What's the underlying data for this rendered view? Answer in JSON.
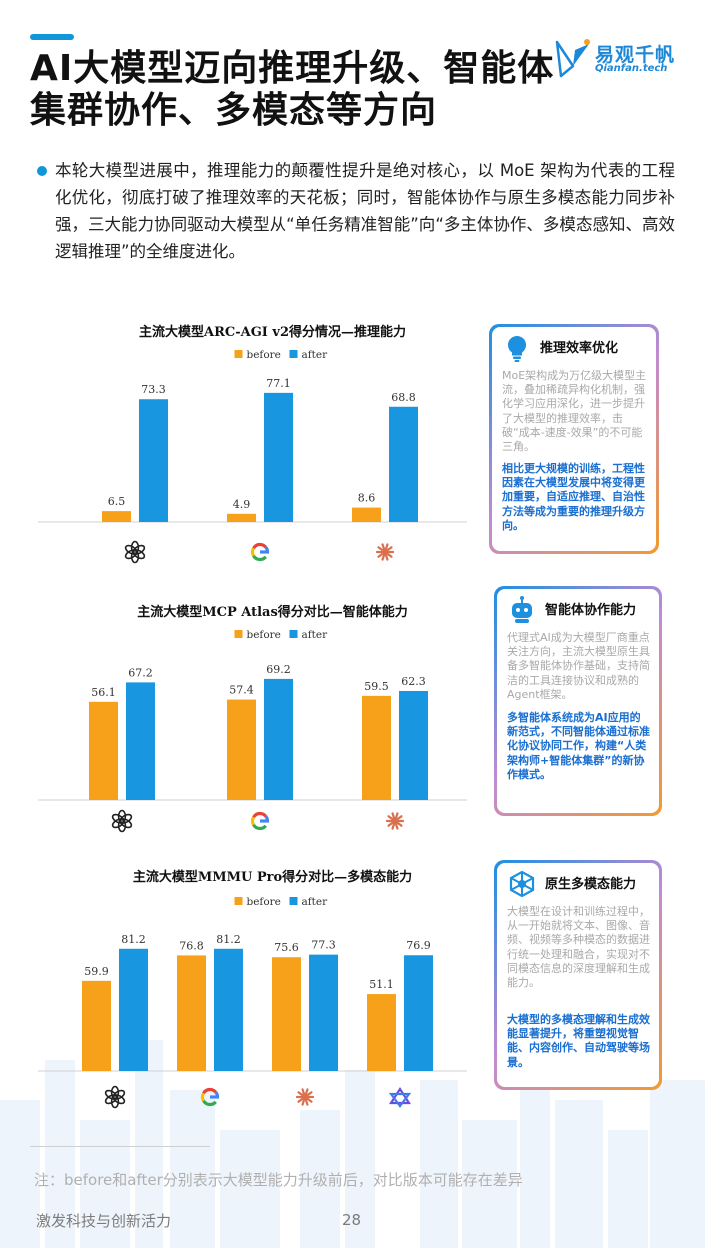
{
  "header": {
    "title": "AI大模型迈向推理升级、智能体集群协作、多模态等方向",
    "logo_cn": "易观千帆",
    "logo_en": "Qianfan.tech"
  },
  "intro": "本轮大模型进展中，推理能力的颠覆性提升是绝对核心，以 MoE 架构为代表的工程化优化，彻底打破了推理效率的天花板；同时，智能体协作与原生多模态能力同步补强，三大能力协同驱动大模型从“单任务精准智能”向“多主体协作、多模态感知、高效逻辑推理”的全维度进化。",
  "colors": {
    "before": "#f7a11a",
    "after": "#1896e0",
    "accent": "#1296db"
  },
  "chart_data": [
    {
      "type": "bar",
      "title": "主流大模型ARC-AGI v2得分情况—推理能力",
      "categories": [
        "openai-icon",
        "google-icon",
        "claude-icon"
      ],
      "series": [
        {
          "name": "before",
          "values": [
            6.5,
            4.9,
            8.6
          ]
        },
        {
          "name": "after",
          "values": [
            73.3,
            77.1,
            68.8
          ]
        }
      ],
      "ylim": [
        0,
        80
      ],
      "legend": "top-center",
      "grid": false
    },
    {
      "type": "bar",
      "title": "主流大模型MCP Atlas得分对比—智能体能力",
      "categories": [
        "openai-icon",
        "google-icon",
        "claude-icon"
      ],
      "series": [
        {
          "name": "before",
          "values": [
            56.1,
            57.4,
            59.5
          ]
        },
        {
          "name": "after",
          "values": [
            67.2,
            69.2,
            62.3
          ]
        }
      ],
      "ylim": [
        0,
        80
      ],
      "legend": "top-center",
      "grid": false
    },
    {
      "type": "bar",
      "title": "主流大模型MMMU Pro得分对比—多模态能力",
      "categories": [
        "openai-icon",
        "google-icon",
        "claude-icon",
        "grok-icon"
      ],
      "series": [
        {
          "name": "before",
          "values": [
            59.9,
            76.8,
            75.6,
            51.1
          ]
        },
        {
          "name": "after",
          "values": [
            81.2,
            81.2,
            77.3,
            76.9
          ]
        }
      ],
      "ylim": [
        0,
        95
      ],
      "legend": "top-center",
      "grid": false
    }
  ],
  "cards": [
    {
      "icon": "lightbulb-icon",
      "title": "推理效率优化",
      "gray": "MoE架构成为万亿级大模型主流，叠加稀疏异构化机制，强化学习应用深化，进一步提升了大模型的推理效率，击破“成本-速度-效果”的不可能三角。",
      "blue": "相比更大规模的训练，工程性因素在大模型发展中将变得更加重要，自适应推理、自治性方法等成为重要的推理升级方向。"
    },
    {
      "icon": "robot-icon",
      "title": "智能体协作能力",
      "gray": "代理式AI成为大模型厂商重点关注方向，主流大模型原生具备多智能体协作基础，支持简洁的工具连接协议和成熟的Agent框架。",
      "blue": "多智能体系统成为AI应用的新范式，不同智能体通过标准化协议协同工作，构建“人类架构师+智能体集群”的新协作模式。"
    },
    {
      "icon": "network-icon",
      "title": "原生多模态能力",
      "gray": "大模型在设计和训练过程中，从一开始就将文本、图像、音频、视频等多种模态的数据进行统一处理和融合，实现对不同模态信息的深度理解和生成能力。",
      "blue": "大模型的多模态理解和生成效能显著提升，将重塑视觉智能、内容创作、自动驾驶等场景。"
    }
  ],
  "footer": {
    "note": "注：before和after分别表示大模型能力升级前后，对比版本可能存在差异",
    "left": "激发科技与创新活力",
    "page": "28"
  }
}
